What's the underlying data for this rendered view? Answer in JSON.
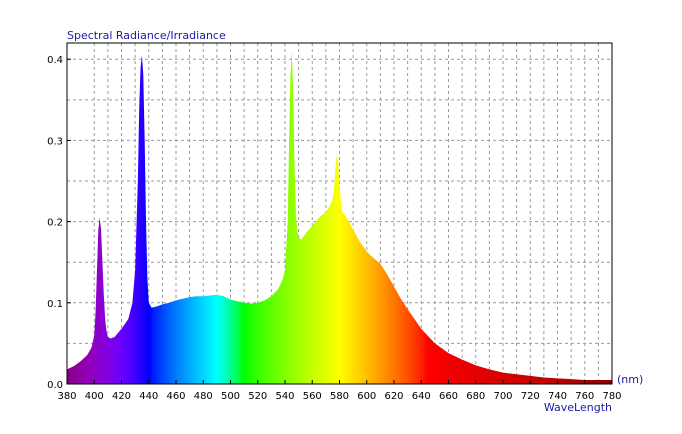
{
  "chart_data": {
    "type": "area",
    "title": "Spectral Radiance/Irradiance",
    "xlabel": "WaveLength",
    "xunit": "(nm)",
    "ylabel": "",
    "xlim": [
      380,
      780
    ],
    "ylim": [
      0,
      0.42
    ],
    "x_ticks": [
      "380",
      "400",
      "420",
      "440",
      "460",
      "480",
      "500",
      "520",
      "540",
      "560",
      "580",
      "600",
      "620",
      "640",
      "660",
      "680",
      "700",
      "720",
      "740",
      "760",
      "780"
    ],
    "y_ticks": [
      "0.0",
      "0.1",
      "0.2",
      "0.3",
      "0.4"
    ],
    "grid": true,
    "fill": "rainbow-by-wavelength",
    "colors": {
      "title": "#1a1aa6",
      "xlabel": "#1a1aa6",
      "xunit": "#1a1aa6",
      "grid": "#9a9a9a",
      "frame": "#000000"
    },
    "series": [
      {
        "x": [
          380,
          385,
          390,
          395,
          398,
          400,
          401,
          402,
          403,
          404,
          405,
          406,
          407,
          408,
          409,
          410,
          412,
          415,
          418,
          420,
          425,
          428,
          430,
          432,
          433,
          434,
          435,
          436,
          437,
          438,
          439,
          440,
          442,
          445,
          450,
          455,
          460,
          465,
          470,
          475,
          480,
          485,
          490,
          495,
          500,
          505,
          510,
          515,
          520,
          525,
          530,
          535,
          538,
          540,
          542,
          543,
          544,
          545,
          546,
          547,
          548,
          549,
          550,
          552,
          555,
          560,
          565,
          570,
          573,
          575,
          576,
          577,
          578,
          579,
          580,
          581,
          582,
          584,
          587,
          590,
          595,
          600,
          605,
          610,
          615,
          620,
          625,
          630,
          640,
          650,
          660,
          670,
          680,
          690,
          700,
          710,
          720,
          730,
          740,
          750,
          760,
          770,
          780
        ],
        "y": [
          0.018,
          0.022,
          0.028,
          0.036,
          0.045,
          0.06,
          0.09,
          0.14,
          0.19,
          0.205,
          0.19,
          0.15,
          0.11,
          0.08,
          0.065,
          0.058,
          0.056,
          0.058,
          0.064,
          0.068,
          0.08,
          0.1,
          0.14,
          0.25,
          0.34,
          0.39,
          0.405,
          0.38,
          0.3,
          0.2,
          0.13,
          0.1,
          0.094,
          0.095,
          0.098,
          0.1,
          0.103,
          0.105,
          0.107,
          0.108,
          0.108,
          0.109,
          0.11,
          0.108,
          0.104,
          0.102,
          0.1,
          0.099,
          0.1,
          0.103,
          0.108,
          0.117,
          0.128,
          0.14,
          0.2,
          0.3,
          0.38,
          0.41,
          0.36,
          0.27,
          0.21,
          0.19,
          0.18,
          0.178,
          0.185,
          0.195,
          0.205,
          0.212,
          0.22,
          0.228,
          0.24,
          0.265,
          0.283,
          0.275,
          0.245,
          0.225,
          0.212,
          0.208,
          0.2,
          0.19,
          0.175,
          0.163,
          0.155,
          0.148,
          0.135,
          0.12,
          0.105,
          0.092,
          0.068,
          0.05,
          0.038,
          0.03,
          0.023,
          0.018,
          0.014,
          0.012,
          0.01,
          0.008,
          0.007,
          0.006,
          0.005,
          0.005,
          0.005
        ]
      }
    ]
  }
}
